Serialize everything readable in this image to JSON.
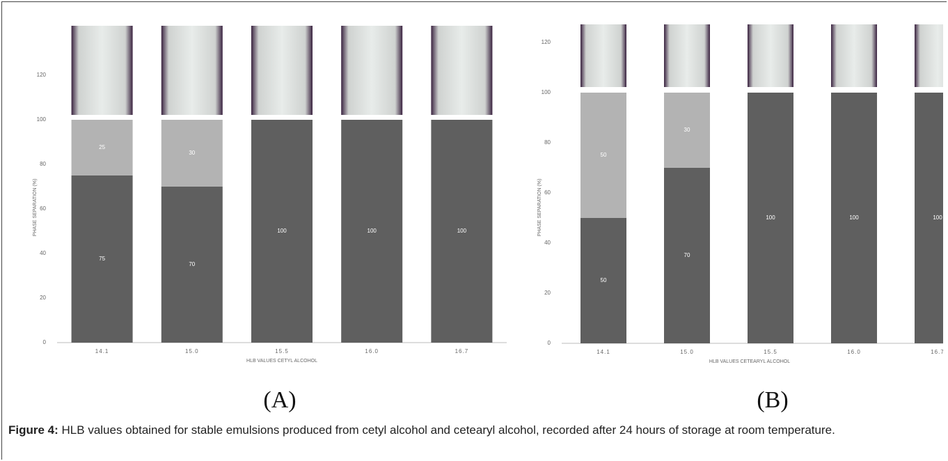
{
  "chart_data": [
    {
      "type": "stacked_bar",
      "panel_label": "(A)",
      "ylabel": "PHASE SEPARATION (%)",
      "xlabel": "HLB VALUES CETYL ALCOHOL",
      "categories": [
        "14.1",
        "15.0",
        "15.5",
        "16.0",
        "16.7"
      ],
      "series": [
        {
          "color": "#5f5f5f",
          "values": [
            75,
            70,
            100,
            100,
            100
          ]
        },
        {
          "color": "#b3b3b3",
          "values": [
            25,
            30,
            null,
            null,
            null
          ]
        }
      ],
      "ylim": [
        0,
        140
      ],
      "yticks": [
        0,
        20,
        40,
        60,
        80,
        100,
        120
      ]
    },
    {
      "type": "stacked_bar",
      "panel_label": "(B)",
      "ylabel": "PHASE SEPARATION (%)",
      "xlabel": "HLB VALUES CETEARYL ALCOHOL",
      "categories": [
        "14.1",
        "15.0",
        "15.5",
        "16.0",
        "16.7"
      ],
      "series": [
        {
          "color": "#5f5f5f",
          "values": [
            50,
            70,
            100,
            100,
            100
          ]
        },
        {
          "color": "#b3b3b3",
          "values": [
            50,
            30,
            null,
            null,
            null
          ]
        }
      ],
      "ylim": [
        0,
        125
      ],
      "yticks": [
        0,
        20,
        40,
        60,
        80,
        100,
        120
      ]
    }
  ],
  "caption": {
    "label": "Figure 4:",
    "text": "HLB values obtained for stable emulsions produced from cetyl alcohol and cetearyl alcohol, recorded after 24 hours of storage at room temperature."
  }
}
